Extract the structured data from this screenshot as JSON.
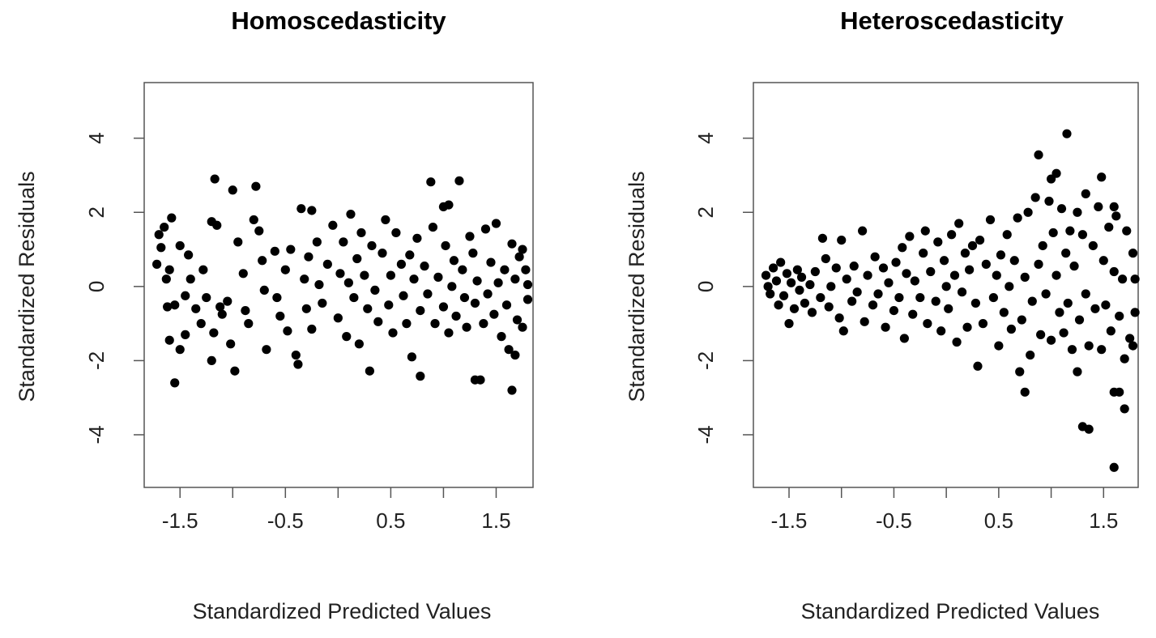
{
  "chart_data": [
    {
      "type": "scatter",
      "title": "Homoscedasticity",
      "xlabel": "Standardized Predicted Values",
      "ylabel": "Standardized Residuals",
      "xlim": [
        -1.84,
        1.85
      ],
      "ylim": [
        -5.42,
        5.5
      ],
      "xticks": [
        -1.5,
        -1,
        -0.5,
        0,
        0.5,
        1,
        1.5
      ],
      "xtick_labels": [
        "-1.5",
        "",
        "-0.5",
        "",
        "0.5",
        "",
        "1.5"
      ],
      "yticks": [
        -4,
        -2,
        0,
        2,
        4
      ],
      "ytick_labels": [
        "-4",
        "-2",
        "0",
        "2",
        "4"
      ],
      "grid": false,
      "marker_color": "#000000",
      "points": [
        [
          -1.17,
          2.9
        ],
        [
          -1.0,
          2.6
        ],
        [
          -0.78,
          2.7
        ],
        [
          0.88,
          2.82
        ],
        [
          1.15,
          2.85
        ],
        [
          -1.55,
          -2.6
        ],
        [
          -0.98,
          -2.28
        ],
        [
          0.3,
          -2.28
        ],
        [
          0.78,
          -2.42
        ],
        [
          1.3,
          -2.52
        ],
        [
          1.35,
          -2.52
        ],
        [
          1.65,
          -2.8
        ],
        [
          1.0,
          2.15
        ],
        [
          1.05,
          2.2
        ],
        [
          -0.35,
          2.1
        ],
        [
          -0.25,
          2.05
        ],
        [
          -1.58,
          1.85
        ],
        [
          -1.65,
          1.6
        ],
        [
          -1.7,
          1.4
        ],
        [
          -1.68,
          1.05
        ],
        [
          -1.72,
          0.6
        ],
        [
          -1.6,
          0.45
        ],
        [
          -1.63,
          0.2
        ],
        [
          -1.55,
          -0.5
        ],
        [
          -1.62,
          -0.55
        ],
        [
          -1.6,
          -1.45
        ],
        [
          -1.5,
          -1.7
        ],
        [
          -1.45,
          -1.3
        ],
        [
          -1.5,
          1.1
        ],
        [
          -1.42,
          0.85
        ],
        [
          -1.4,
          0.2
        ],
        [
          -1.45,
          -0.25
        ],
        [
          -1.35,
          -0.6
        ],
        [
          -1.3,
          -1.0
        ],
        [
          -1.28,
          0.45
        ],
        [
          -1.25,
          -0.3
        ],
        [
          -1.2,
          1.75
        ],
        [
          -1.15,
          1.65
        ],
        [
          -1.12,
          -0.55
        ],
        [
          -1.1,
          -0.75
        ],
        [
          -1.05,
          -0.4
        ],
        [
          -1.18,
          -1.25
        ],
        [
          -1.2,
          -2.0
        ],
        [
          -1.02,
          -1.55
        ],
        [
          -0.95,
          1.2
        ],
        [
          -0.9,
          0.35
        ],
        [
          -0.88,
          -0.65
        ],
        [
          -0.85,
          -1.0
        ],
        [
          -0.8,
          1.8
        ],
        [
          -0.75,
          1.5
        ],
        [
          -0.72,
          0.7
        ],
        [
          -0.7,
          -0.1
        ],
        [
          -0.68,
          -1.7
        ],
        [
          -0.6,
          0.95
        ],
        [
          -0.58,
          -0.3
        ],
        [
          -0.55,
          -0.8
        ],
        [
          -0.5,
          0.45
        ],
        [
          -0.48,
          -1.2
        ],
        [
          -0.45,
          1.0
        ],
        [
          -0.4,
          -1.85
        ],
        [
          -0.38,
          -2.1
        ],
        [
          -0.32,
          0.2
        ],
        [
          -0.3,
          -0.6
        ],
        [
          -0.28,
          0.8
        ],
        [
          -0.25,
          -1.15
        ],
        [
          -0.2,
          1.2
        ],
        [
          -0.18,
          0.05
        ],
        [
          -0.15,
          -0.45
        ],
        [
          -0.1,
          0.6
        ],
        [
          -0.05,
          1.65
        ],
        [
          0.0,
          -0.85
        ],
        [
          0.02,
          0.35
        ],
        [
          0.05,
          1.2
        ],
        [
          0.08,
          -1.35
        ],
        [
          0.1,
          0.1
        ],
        [
          0.12,
          1.95
        ],
        [
          0.15,
          -0.3
        ],
        [
          0.18,
          0.75
        ],
        [
          0.2,
          -1.55
        ],
        [
          0.22,
          1.45
        ],
        [
          0.25,
          0.3
        ],
        [
          0.28,
          -0.6
        ],
        [
          0.32,
          1.1
        ],
        [
          0.35,
          -0.1
        ],
        [
          0.38,
          -0.95
        ],
        [
          0.42,
          0.9
        ],
        [
          0.45,
          1.8
        ],
        [
          0.48,
          -0.5
        ],
        [
          0.5,
          0.3
        ],
        [
          0.52,
          -1.25
        ],
        [
          0.55,
          1.45
        ],
        [
          0.6,
          0.6
        ],
        [
          0.62,
          -0.25
        ],
        [
          0.65,
          -1.0
        ],
        [
          0.68,
          0.85
        ],
        [
          0.7,
          -1.9
        ],
        [
          0.72,
          0.2
        ],
        [
          0.75,
          1.3
        ],
        [
          0.78,
          -0.65
        ],
        [
          0.82,
          0.55
        ],
        [
          0.85,
          -0.2
        ],
        [
          0.9,
          1.6
        ],
        [
          0.92,
          -1.0
        ],
        [
          0.95,
          0.25
        ],
        [
          1.0,
          -0.55
        ],
        [
          1.02,
          1.1
        ],
        [
          1.05,
          -1.25
        ],
        [
          1.08,
          0.0
        ],
        [
          1.1,
          0.7
        ],
        [
          1.12,
          -0.8
        ],
        [
          1.18,
          0.45
        ],
        [
          1.2,
          -0.3
        ],
        [
          1.22,
          -1.1
        ],
        [
          1.25,
          1.35
        ],
        [
          1.28,
          0.9
        ],
        [
          1.3,
          -0.45
        ],
        [
          1.32,
          0.15
        ],
        [
          1.38,
          -1.0
        ],
        [
          1.4,
          1.55
        ],
        [
          1.42,
          -0.2
        ],
        [
          1.45,
          0.65
        ],
        [
          1.48,
          -0.75
        ],
        [
          1.5,
          1.7
        ],
        [
          1.52,
          0.1
        ],
        [
          1.55,
          -1.35
        ],
        [
          1.58,
          0.45
        ],
        [
          1.6,
          -0.5
        ],
        [
          1.62,
          -1.7
        ],
        [
          1.65,
          1.15
        ],
        [
          1.68,
          0.2
        ],
        [
          1.7,
          -0.9
        ],
        [
          1.72,
          0.8
        ],
        [
          1.75,
          -1.1
        ],
        [
          1.78,
          0.45
        ],
        [
          1.8,
          -0.35
        ],
        [
          1.75,
          1.0
        ],
        [
          1.68,
          -1.85
        ],
        [
          1.8,
          0.05
        ]
      ]
    },
    {
      "type": "scatter",
      "title": "Heteroscedasticity",
      "xlabel": "Standardized Predicted Values",
      "ylabel": "Standardized Residuals",
      "xlim": [
        -1.84,
        1.83
      ],
      "ylim": [
        -5.42,
        5.5
      ],
      "xticks": [
        -1.5,
        -1,
        -0.5,
        0,
        0.5,
        1,
        1.5
      ],
      "xtick_labels": [
        "-1.5",
        "",
        "-0.5",
        "",
        "0.5",
        "",
        "1.5"
      ],
      "yticks": [
        -4,
        -2,
        0,
        2,
        4
      ],
      "ytick_labels": [
        "-4",
        "-2",
        "0",
        "2",
        "4"
      ],
      "grid": false,
      "marker_color": "#000000",
      "points": [
        [
          1.15,
          4.12
        ],
        [
          0.88,
          3.55
        ],
        [
          1.05,
          3.05
        ],
        [
          1.0,
          2.9
        ],
        [
          1.48,
          2.95
        ],
        [
          1.33,
          2.5
        ],
        [
          1.6,
          2.15
        ],
        [
          1.6,
          -4.88
        ],
        [
          1.3,
          -3.78
        ],
        [
          1.36,
          -3.85
        ],
        [
          1.7,
          -3.3
        ],
        [
          1.6,
          -2.85
        ],
        [
          1.65,
          -2.85
        ],
        [
          0.75,
          -2.85
        ],
        [
          0.7,
          -2.3
        ],
        [
          0.3,
          -2.15
        ],
        [
          1.25,
          -2.3
        ],
        [
          -1.72,
          0.3
        ],
        [
          -1.7,
          0.0
        ],
        [
          -1.68,
          -0.2
        ],
        [
          -1.65,
          0.5
        ],
        [
          -1.62,
          0.15
        ],
        [
          -1.6,
          -0.5
        ],
        [
          -1.58,
          0.65
        ],
        [
          -1.55,
          -0.25
        ],
        [
          -1.52,
          0.35
        ],
        [
          -1.5,
          -1.0
        ],
        [
          -1.48,
          0.1
        ],
        [
          -1.45,
          -0.6
        ],
        [
          -1.42,
          0.45
        ],
        [
          -1.4,
          -0.1
        ],
        [
          -1.38,
          0.25
        ],
        [
          -1.35,
          -0.45
        ],
        [
          -1.3,
          0.05
        ],
        [
          -1.28,
          -0.7
        ],
        [
          -1.25,
          0.4
        ],
        [
          -1.2,
          -0.3
        ],
        [
          -1.18,
          1.3
        ],
        [
          -1.15,
          0.75
        ],
        [
          -1.12,
          -0.55
        ],
        [
          -1.1,
          0.0
        ],
        [
          -1.05,
          0.5
        ],
        [
          -1.02,
          -0.85
        ],
        [
          -1.0,
          1.25
        ],
        [
          -0.98,
          -1.2
        ],
        [
          -0.95,
          0.2
        ],
        [
          -0.9,
          -0.4
        ],
        [
          -0.88,
          0.55
        ],
        [
          -0.85,
          -0.15
        ],
        [
          -0.8,
          1.5
        ],
        [
          -0.78,
          -0.95
        ],
        [
          -0.75,
          0.3
        ],
        [
          -0.7,
          -0.5
        ],
        [
          -0.68,
          0.8
        ],
        [
          -0.65,
          -0.2
        ],
        [
          -0.6,
          0.5
        ],
        [
          -0.58,
          -1.1
        ],
        [
          -0.55,
          0.1
        ],
        [
          -0.5,
          -0.65
        ],
        [
          -0.48,
          0.65
        ],
        [
          -0.45,
          -0.3
        ],
        [
          -0.42,
          1.05
        ],
        [
          -0.4,
          -1.4
        ],
        [
          -0.38,
          0.35
        ],
        [
          -0.35,
          1.35
        ],
        [
          -0.32,
          -0.75
        ],
        [
          -0.3,
          0.15
        ],
        [
          -0.25,
          -0.3
        ],
        [
          -0.22,
          0.9
        ],
        [
          -0.2,
          1.5
        ],
        [
          -0.18,
          -1.0
        ],
        [
          -0.15,
          0.4
        ],
        [
          -0.1,
          -0.4
        ],
        [
          -0.08,
          1.2
        ],
        [
          -0.05,
          -1.2
        ],
        [
          -0.02,
          0.7
        ],
        [
          0.0,
          0.0
        ],
        [
          0.02,
          -0.6
        ],
        [
          0.05,
          1.4
        ],
        [
          0.08,
          0.3
        ],
        [
          0.1,
          -1.5
        ],
        [
          0.12,
          1.7
        ],
        [
          0.15,
          -0.15
        ],
        [
          0.18,
          0.9
        ],
        [
          0.2,
          -1.1
        ],
        [
          0.22,
          0.45
        ],
        [
          0.25,
          1.1
        ],
        [
          0.28,
          -0.45
        ],
        [
          0.32,
          1.25
        ],
        [
          0.35,
          -1.0
        ],
        [
          0.38,
          0.6
        ],
        [
          0.42,
          1.8
        ],
        [
          0.45,
          -0.3
        ],
        [
          0.48,
          0.3
        ],
        [
          0.5,
          -1.6
        ],
        [
          0.52,
          0.85
        ],
        [
          0.55,
          -0.7
        ],
        [
          0.58,
          1.4
        ],
        [
          0.6,
          0.0
        ],
        [
          0.62,
          -1.15
        ],
        [
          0.65,
          0.7
        ],
        [
          0.68,
          1.85
        ],
        [
          0.72,
          -0.9
        ],
        [
          0.75,
          0.25
        ],
        [
          0.78,
          2.0
        ],
        [
          0.8,
          -1.85
        ],
        [
          0.82,
          -0.4
        ],
        [
          0.85,
          2.4
        ],
        [
          0.88,
          0.6
        ],
        [
          0.9,
          -1.3
        ],
        [
          0.92,
          1.1
        ],
        [
          0.95,
          -0.2
        ],
        [
          0.98,
          2.3
        ],
        [
          1.0,
          -1.45
        ],
        [
          1.02,
          1.45
        ],
        [
          1.05,
          0.3
        ],
        [
          1.08,
          -0.7
        ],
        [
          1.1,
          2.1
        ],
        [
          1.12,
          -1.25
        ],
        [
          1.14,
          0.9
        ],
        [
          1.16,
          -0.45
        ],
        [
          1.18,
          1.5
        ],
        [
          1.2,
          -1.7
        ],
        [
          1.22,
          0.55
        ],
        [
          1.25,
          2.0
        ],
        [
          1.27,
          -0.9
        ],
        [
          1.3,
          1.4
        ],
        [
          1.33,
          -0.2
        ],
        [
          1.36,
          -1.6
        ],
        [
          1.4,
          1.1
        ],
        [
          1.42,
          -0.6
        ],
        [
          1.45,
          2.15
        ],
        [
          1.48,
          -1.7
        ],
        [
          1.5,
          0.7
        ],
        [
          1.52,
          -0.5
        ],
        [
          1.55,
          1.6
        ],
        [
          1.57,
          -1.2
        ],
        [
          1.6,
          0.4
        ],
        [
          1.62,
          1.9
        ],
        [
          1.65,
          -0.8
        ],
        [
          1.68,
          0.2
        ],
        [
          1.7,
          -1.95
        ],
        [
          1.72,
          1.5
        ],
        [
          1.75,
          -1.4
        ],
        [
          1.78,
          0.9
        ],
        [
          1.8,
          -0.7
        ],
        [
          1.78,
          -1.6
        ],
        [
          1.8,
          0.2
        ]
      ]
    }
  ]
}
